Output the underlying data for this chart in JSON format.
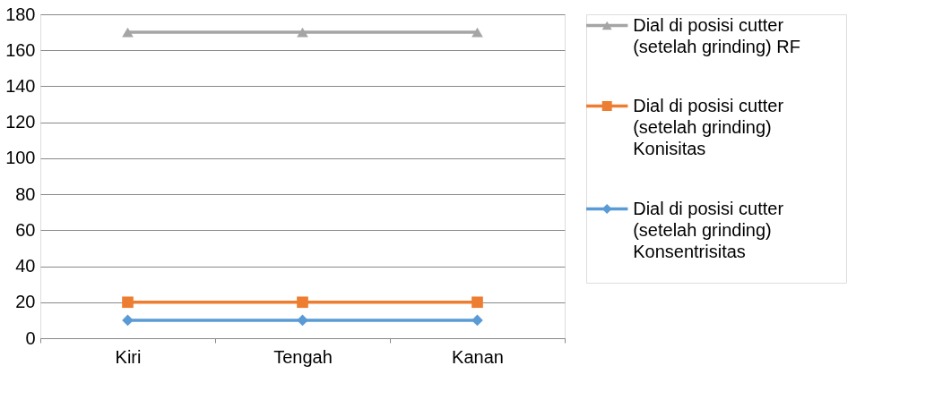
{
  "chart_data": {
    "type": "line",
    "categories": [
      "Kiri",
      "Tengah",
      "Kanan"
    ],
    "series": [
      {
        "name": "Dial di posisi cutter (setelah grinding) RF",
        "color": "#a5a5a5",
        "marker": "triangle",
        "values": [
          170,
          170,
          170
        ]
      },
      {
        "name": "Dial di posisi cutter (setelah grinding) Konisitas",
        "color": "#ed7d31",
        "marker": "square",
        "values": [
          20,
          20,
          20
        ]
      },
      {
        "name": "Dial di posisi cutter (setelah grinding) Konsentrisitas",
        "color": "#5b9bd5",
        "marker": "diamond",
        "values": [
          10,
          10,
          10
        ]
      }
    ],
    "ylim": [
      0,
      180
    ],
    "yticks": [
      0,
      20,
      40,
      60,
      80,
      100,
      120,
      140,
      160,
      180
    ],
    "grid": "y",
    "legend": "right"
  }
}
